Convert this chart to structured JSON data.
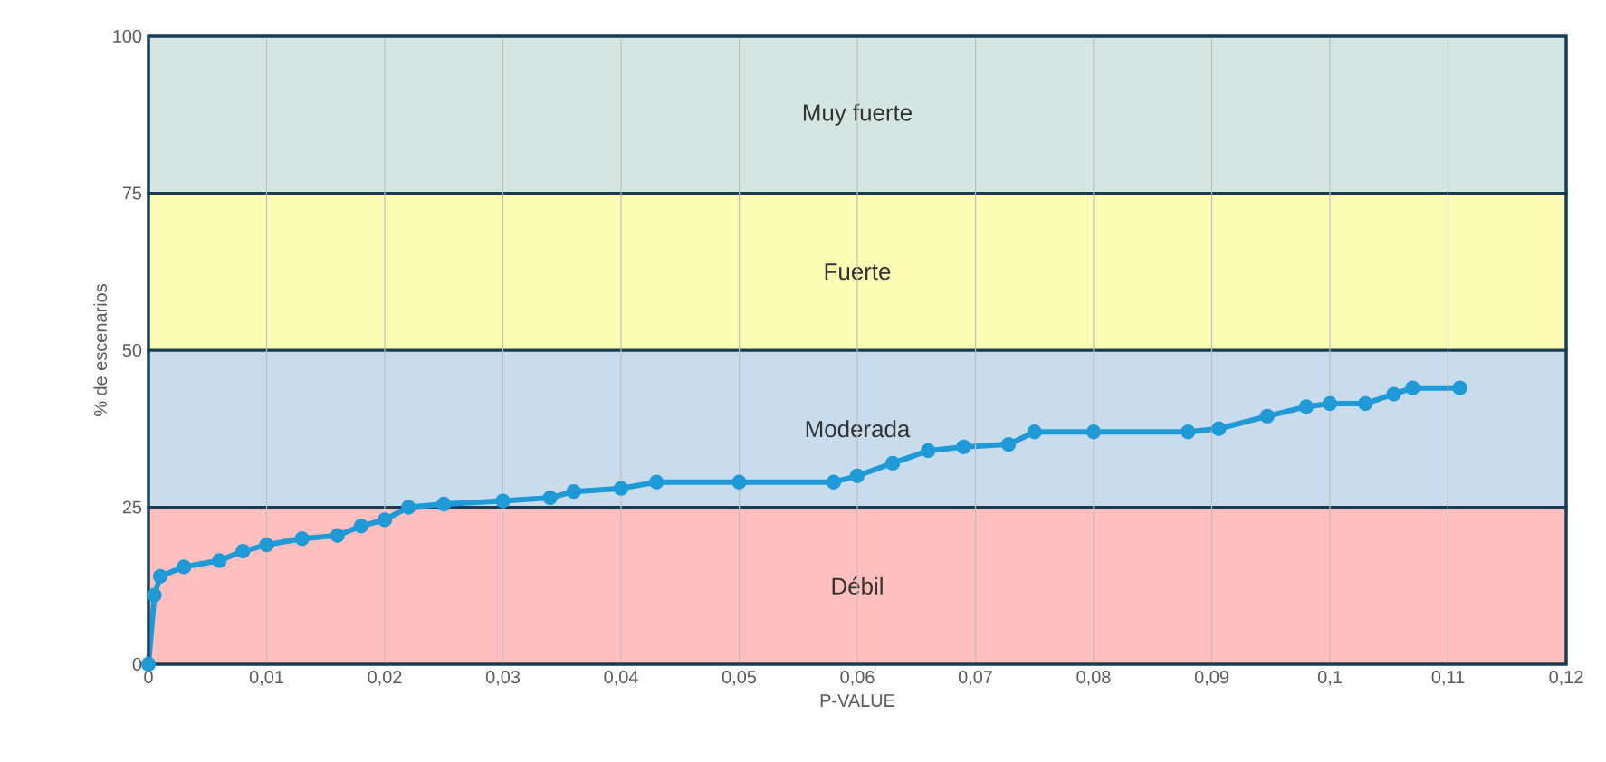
{
  "chart_data": {
    "type": "line",
    "xlabel": "P-VALUE",
    "ylabel": "% de escenarios",
    "x": [
      0,
      0.0005,
      0.001,
      0.003,
      0.006,
      0.008,
      0.01,
      0.013,
      0.016,
      0.018,
      0.02,
      0.022,
      0.025,
      0.03,
      0.034,
      0.036,
      0.04,
      0.043,
      0.05,
      0.058,
      0.06,
      0.063,
      0.066,
      0.069,
      0.0728,
      0.075,
      0.08,
      0.088,
      0.0906,
      0.0947,
      0.098,
      0.1,
      0.103,
      0.1054,
      0.107,
      0.111
    ],
    "series": [
      {
        "color": "#1f9ad6",
        "values": [
          0,
          11,
          14,
          15.5,
          16.5,
          18,
          19,
          20,
          20.5,
          22,
          23,
          25,
          25.5,
          26,
          26.5,
          27.5,
          28,
          29,
          29,
          29,
          30,
          32,
          34,
          34.6,
          35,
          37,
          37,
          37,
          37.5,
          39.5,
          41,
          41.5,
          41.5,
          43,
          44,
          44
        ]
      }
    ],
    "marker": "circle",
    "line_style": "solid",
    "grid": "x",
    "xlim": [
      0,
      0.12
    ],
    "ylim": [
      0,
      100
    ],
    "xticks": [
      0,
      {
        "value": 0.01,
        "label": "0,01"
      },
      {
        "value": 0.02,
        "label": "0,02"
      },
      {
        "value": 0.03,
        "label": "0,03"
      },
      {
        "value": 0.04,
        "label": "0,04"
      },
      {
        "value": 0.05,
        "label": "0,05"
      },
      {
        "value": 0.06,
        "label": "0,06"
      },
      {
        "value": 0.07,
        "label": "0,07"
      },
      {
        "value": 0.08,
        "label": "0,08"
      },
      {
        "value": 0.09,
        "label": "0,09"
      },
      {
        "value": 0.1,
        "label": "0,1"
      },
      {
        "value": 0.11,
        "label": "0,11"
      },
      {
        "value": 0.12,
        "label": "0,12"
      }
    ],
    "yticks": [
      0,
      25,
      50,
      75,
      100
    ],
    "bands": [
      {
        "axis": "y",
        "from": 0,
        "to": 25,
        "label": "Débil",
        "color": "#ffbfbf"
      },
      {
        "axis": "y",
        "from": 25,
        "to": 50,
        "label": "Moderada",
        "color": "#c9dcee"
      },
      {
        "axis": "y",
        "from": 50,
        "to": 75,
        "label": "Fuerte",
        "color": "#fdfcb4"
      },
      {
        "axis": "y",
        "from": 75,
        "to": 100,
        "label": "Muy fuerte",
        "color": "#d4e6e1"
      }
    ]
  }
}
